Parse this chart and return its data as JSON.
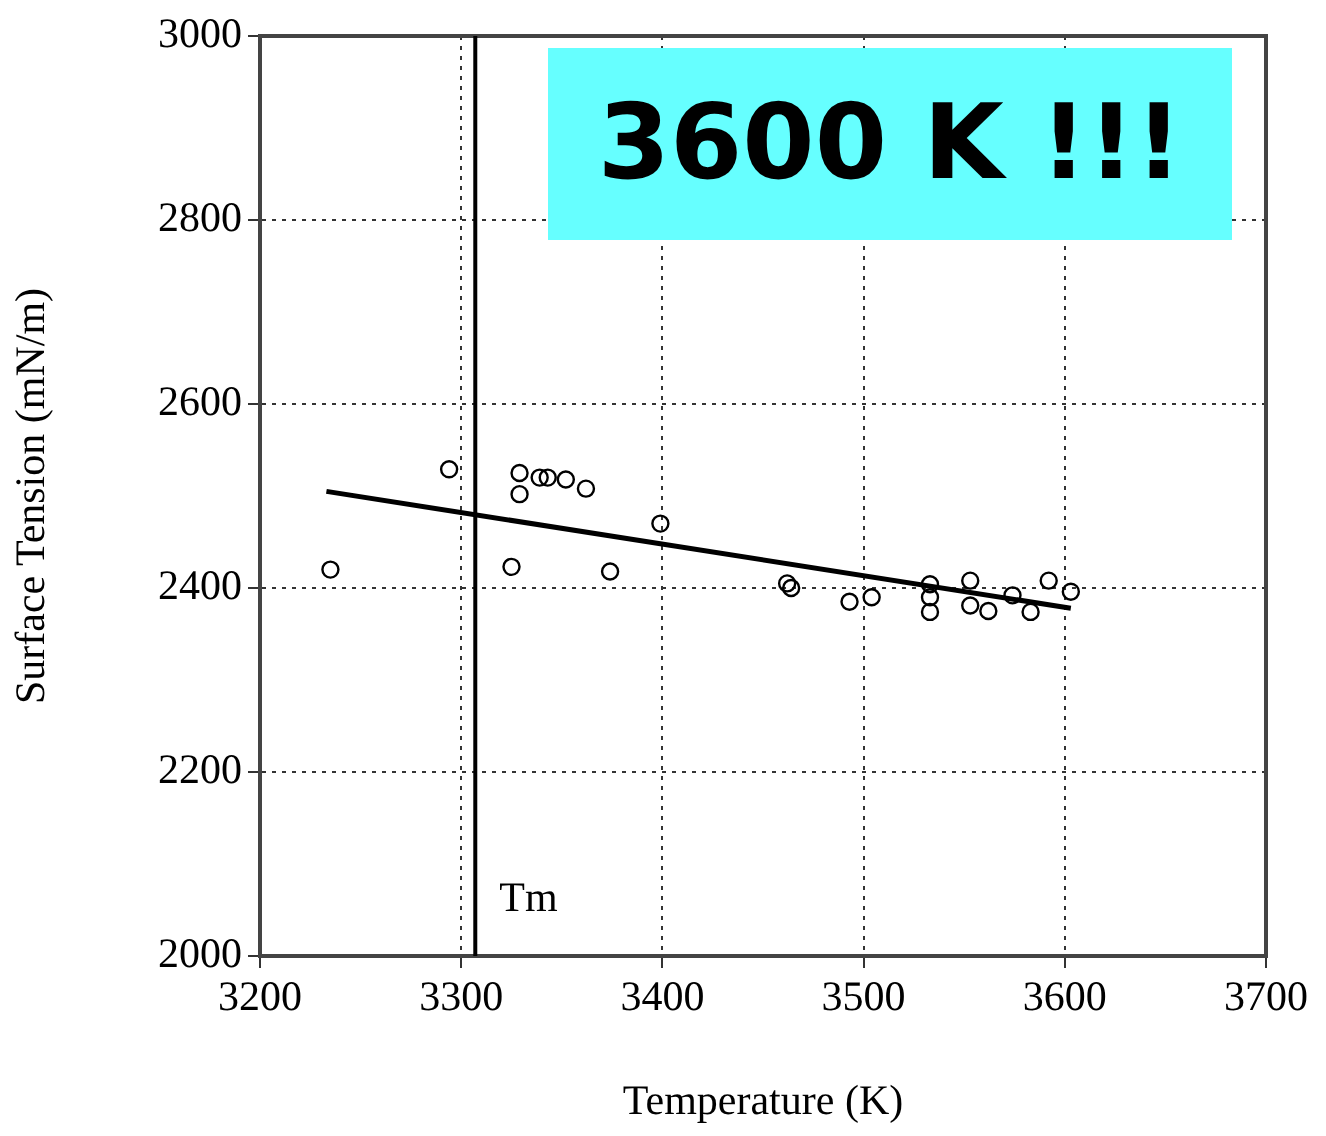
{
  "chart_data": {
    "type": "scatter",
    "xlabel": "Temperature (K)",
    "ylabel": "Surface Tension (mN/m)",
    "xlim": [
      3200,
      3700
    ],
    "xticks": [
      3200,
      3300,
      3400,
      3500,
      3600,
      3700
    ],
    "ylim": [
      2000,
      3000
    ],
    "yticks": [
      2000,
      2200,
      2400,
      2600,
      2800,
      3000
    ],
    "grid": true,
    "legend": false,
    "marker": "circle",
    "series": [
      {
        "color": "#000000",
        "x": [
          3235,
          3294,
          3329,
          3329,
          3339,
          3343,
          3352,
          3362,
          3325,
          3374,
          3399,
          3462,
          3464,
          3493,
          3504,
          3533,
          3533,
          3533,
          3553,
          3553,
          3562,
          3574,
          3583,
          3592,
          3603
        ],
        "values": [
          2420,
          2529,
          2525,
          2502,
          2520,
          2520,
          2518,
          2508,
          2423,
          2418,
          2470,
          2405,
          2400,
          2385,
          2390,
          2404,
          2374,
          2390,
          2408,
          2381,
          2375,
          2392,
          2374,
          2408,
          2396
        ]
      },
      {
        "type": "line",
        "color": "#000000",
        "marker": "none",
        "x": [
          3233,
          3603
        ],
        "values": [
          2505,
          2378
        ]
      }
    ],
    "ref_lines": [
      {
        "axis": "x",
        "value": 3307,
        "label": "Tm",
        "color": "#000000"
      }
    ],
    "annotations": [
      "3600 K !!!"
    ]
  }
}
